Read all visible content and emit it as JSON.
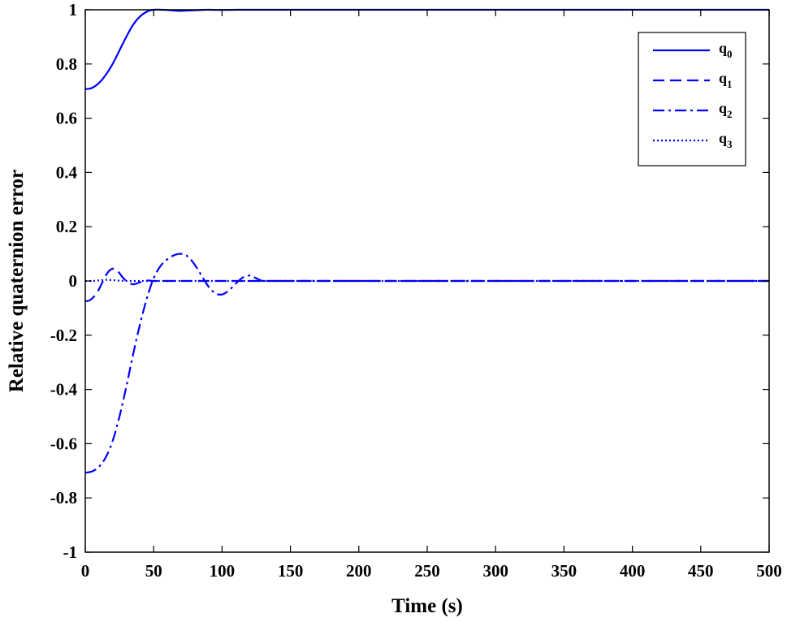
{
  "chart_data": {
    "type": "line",
    "xlabel": "Time (s)",
    "ylabel": "Relative quaternion error",
    "xlim": [
      0,
      500
    ],
    "ylim": [
      -1,
      1
    ],
    "xticks": [
      "0",
      "50",
      "100",
      "150",
      "200",
      "250",
      "300",
      "350",
      "400",
      "450",
      "500"
    ],
    "yticks": [
      "1",
      "0.8",
      "0.6",
      "0.4",
      "0.2",
      "0",
      "-0.2",
      "-0.4",
      "-0.6",
      "-0.8",
      "-1"
    ],
    "grid": false,
    "legend_position": "top-right",
    "line_color": "#0000ff",
    "series": [
      {
        "name": "q0",
        "label_main": "q",
        "label_sub": "0",
        "style": "solid",
        "x": [
          0,
          5,
          10,
          15,
          20,
          25,
          30,
          35,
          40,
          45,
          50,
          55,
          60,
          65,
          70,
          80,
          90,
          100,
          110,
          120,
          150,
          200,
          300,
          400,
          500
        ],
        "y": [
          0.707,
          0.712,
          0.73,
          0.76,
          0.8,
          0.85,
          0.9,
          0.945,
          0.975,
          0.993,
          1.0,
          1.0,
          0.999,
          0.997,
          0.996,
          0.998,
          1.0,
          0.999,
          1.0,
          1.0,
          1.0,
          1.0,
          1.0,
          1.0,
          1.0
        ]
      },
      {
        "name": "q1",
        "label_main": "q",
        "label_sub": "1",
        "style": "dashed",
        "x": [
          0,
          3,
          6,
          9,
          12,
          15,
          18,
          21,
          24,
          27,
          30,
          33,
          36,
          40,
          45,
          50,
          60,
          80,
          100,
          130,
          200,
          300,
          400,
          500
        ],
        "y": [
          -0.075,
          -0.072,
          -0.06,
          -0.04,
          -0.01,
          0.02,
          0.04,
          0.045,
          0.035,
          0.015,
          0.0,
          -0.01,
          -0.012,
          -0.005,
          0.002,
          0.0,
          0.0,
          0.0,
          0.0,
          0.0,
          0.0,
          0.0,
          0.0,
          0.0
        ]
      },
      {
        "name": "q2",
        "label_main": "q",
        "label_sub": "2",
        "style": "dashdot",
        "x": [
          0,
          5,
          10,
          15,
          20,
          25,
          30,
          35,
          40,
          45,
          50,
          55,
          60,
          65,
          70,
          75,
          80,
          85,
          90,
          95,
          100,
          105,
          110,
          115,
          120,
          125,
          130,
          140,
          200,
          300,
          400,
          500
        ],
        "y": [
          -0.707,
          -0.702,
          -0.685,
          -0.65,
          -0.59,
          -0.5,
          -0.39,
          -0.27,
          -0.16,
          -0.065,
          0.01,
          0.055,
          0.08,
          0.095,
          0.1,
          0.09,
          0.06,
          0.02,
          -0.02,
          -0.045,
          -0.05,
          -0.035,
          -0.01,
          0.012,
          0.02,
          0.01,
          0.0,
          0.0,
          0.0,
          0.0,
          0.0,
          0.0
        ]
      },
      {
        "name": "q3",
        "label_main": "q",
        "label_sub": "3",
        "style": "dotted",
        "x": [
          0,
          5,
          10,
          15,
          20,
          25,
          30,
          40,
          50,
          100,
          200,
          300,
          400,
          500
        ],
        "y": [
          0.0,
          0.0,
          0.002,
          0.004,
          0.003,
          0.001,
          0.0,
          0.0,
          0.0,
          0.0,
          0.0,
          0.0,
          0.0,
          0.0
        ]
      }
    ]
  }
}
